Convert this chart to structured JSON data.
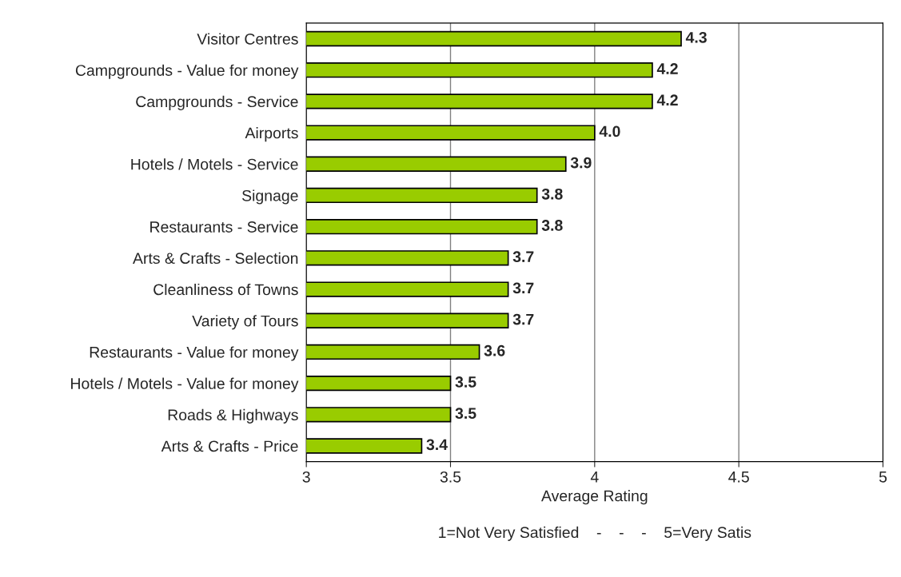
{
  "chart_data": {
    "type": "bar",
    "orientation": "horizontal",
    "categories": [
      "Visitor Centres",
      "Campgrounds - Value for money",
      "Campgrounds - Service",
      "Airports",
      "Hotels / Motels - Service",
      "Signage",
      "Restaurants - Service",
      "Arts & Crafts - Selection",
      "Cleanliness of Towns",
      "Variety of Tours",
      "Restaurants - Value for money",
      "Hotels / Motels - Value for money",
      "Roads & Highways",
      "Arts & Crafts - Price"
    ],
    "values": [
      4.3,
      4.2,
      4.2,
      4.0,
      3.9,
      3.8,
      3.8,
      3.7,
      3.7,
      3.7,
      3.6,
      3.5,
      3.5,
      3.4
    ],
    "color": "#99cc00",
    "value_labels": [
      "4.3",
      "4.2",
      "4.2",
      "4.0",
      "3.9",
      "3.8",
      "3.8",
      "3.7",
      "3.7",
      "3.7",
      "3.6",
      "3.5",
      "3.5",
      "3.4"
    ],
    "xlabel": "Average Rating",
    "annotations": [
      "1=Not Very Satisfied    -    -    -    5=Very Satis"
    ],
    "xlim": [
      3,
      5
    ],
    "xticks": [
      3,
      3.5,
      4,
      4.5,
      5
    ],
    "grid": "x"
  }
}
